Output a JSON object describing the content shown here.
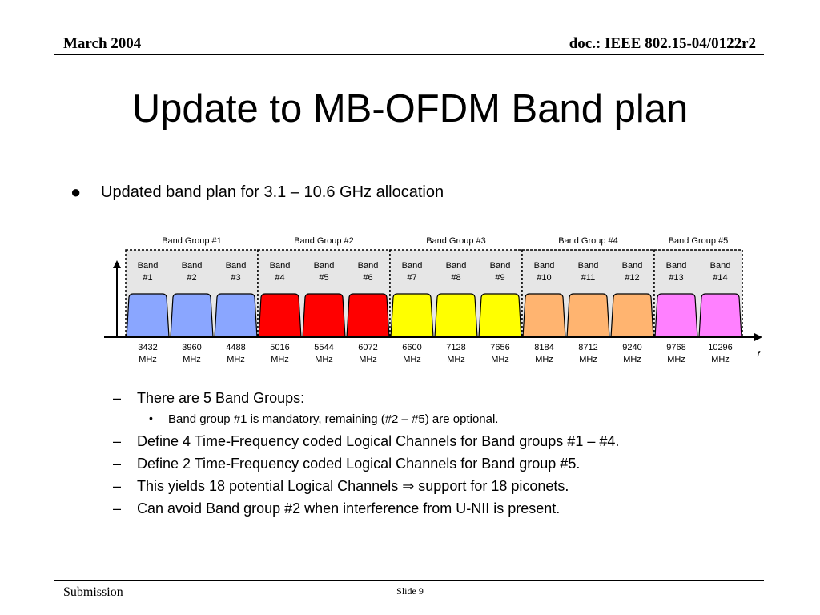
{
  "header": {
    "left": "March 2004",
    "right": "doc.: IEEE 802.15-04/0122r2"
  },
  "title": "Update to MB-OFDM Band plan",
  "main_bullet": "Updated band plan for 3.1 – 10.6 GHz allocation",
  "diagram": {
    "axis_label": "f",
    "band_groups": [
      {
        "label": "Band Group #1",
        "color": "#8aa6ff",
        "bands": [
          0,
          1,
          2
        ]
      },
      {
        "label": "Band Group #2",
        "color": "#ff0000",
        "bands": [
          3,
          4,
          5
        ]
      },
      {
        "label": "Band Group #3",
        "color": "#ffff00",
        "bands": [
          6,
          7,
          8
        ]
      },
      {
        "label": "Band Group #4",
        "color": "#ffb470",
        "bands": [
          9,
          10,
          11
        ]
      },
      {
        "label": "Band Group #5",
        "color": "#ff80ff",
        "bands": [
          12,
          13
        ]
      }
    ],
    "bands": [
      {
        "line1": "Band",
        "line2": "#1",
        "freq": "3432",
        "unit": "MHz"
      },
      {
        "line1": "Band",
        "line2": "#2",
        "freq": "3960",
        "unit": "MHz"
      },
      {
        "line1": "Band",
        "line2": "#3",
        "freq": "4488",
        "unit": "MHz"
      },
      {
        "line1": "Band",
        "line2": "#4",
        "freq": "5016",
        "unit": "MHz"
      },
      {
        "line1": "Band",
        "line2": "#5",
        "freq": "5544",
        "unit": "MHz"
      },
      {
        "line1": "Band",
        "line2": "#6",
        "freq": "6072",
        "unit": "MHz"
      },
      {
        "line1": "Band",
        "line2": "#7",
        "freq": "6600",
        "unit": "MHz"
      },
      {
        "line1": "Band",
        "line2": "#8",
        "freq": "7128",
        "unit": "MHz"
      },
      {
        "line1": "Band",
        "line2": "#9",
        "freq": "7656",
        "unit": "MHz"
      },
      {
        "line1": "Band",
        "line2": "#10",
        "freq": "8184",
        "unit": "MHz"
      },
      {
        "line1": "Band",
        "line2": "#11",
        "freq": "8712",
        "unit": "MHz"
      },
      {
        "line1": "Band",
        "line2": "#12",
        "freq": "9240",
        "unit": "MHz"
      },
      {
        "line1": "Band",
        "line2": "#13",
        "freq": "9768",
        "unit": "MHz"
      },
      {
        "line1": "Band",
        "line2": "#14",
        "freq": "10296",
        "unit": "MHz"
      }
    ]
  },
  "sub_items": [
    {
      "kind": "dash",
      "text": "There are 5 Band Groups:"
    },
    {
      "kind": "dot",
      "text": "Band group #1 is mandatory, remaining (#2 – #5)  are optional."
    },
    {
      "kind": "dash",
      "text": "Define 4 Time-Frequency coded Logical Channels  for Band groups #1 – #4."
    },
    {
      "kind": "dash",
      "text": "Define 2 Time-Frequency coded Logical Channels for Band group #5."
    },
    {
      "kind": "dash",
      "text": "This yields 18 potential Logical Channels ⇒ support for 18 piconets."
    },
    {
      "kind": "dash",
      "text": "Can avoid Band group #2 when interference from U-NII is present."
    }
  ],
  "footer": {
    "left": "Submission",
    "center": "Slide 9"
  }
}
